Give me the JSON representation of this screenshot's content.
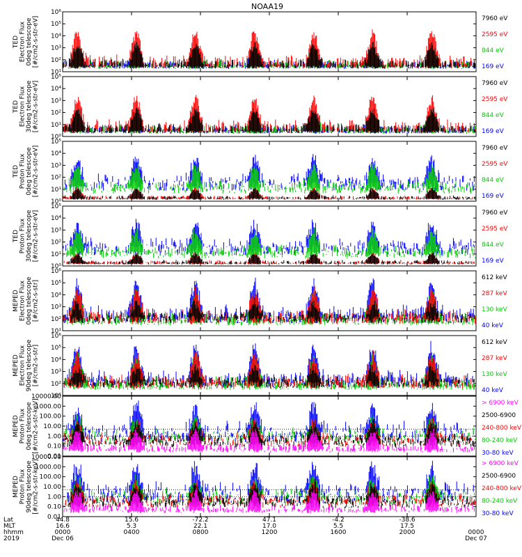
{
  "title": "NOAA19",
  "panels": [
    {
      "ylabel": [
        "TED",
        "Electron Flux",
        "0deg telescope",
        "[#/cm2-s-str-eV]"
      ],
      "yticks": [
        "10¹",
        "10²",
        "10³",
        "10⁴",
        "10⁵",
        "10⁶"
      ],
      "legend": [
        {
          "text": "7960 eV",
          "color": "#000000"
        },
        {
          "text": "2595 eV",
          "color": "#ff0000"
        },
        {
          "text": "844 eV",
          "color": "#00cc00"
        },
        {
          "text": "169 eV",
          "color": "#0000ff"
        }
      ]
    },
    {
      "ylabel": [
        "TED",
        "Electron Flux",
        "30deg telescope",
        "[#/cm2-s-str-eV]"
      ],
      "yticks": [
        "10⁰",
        "10¹",
        "10²",
        "10³",
        "10⁴",
        "10⁵"
      ],
      "legend": [
        {
          "text": "7960 eV",
          "color": "#000000"
        },
        {
          "text": "2595 eV",
          "color": "#ff0000"
        },
        {
          "text": "844 eV",
          "color": "#00cc00"
        },
        {
          "text": "169 eV",
          "color": "#0000ff"
        }
      ]
    },
    {
      "ylabel": [
        "TED",
        "Proton Flux",
        "0deg telescope",
        "[#/cm2-s-str-eV]"
      ],
      "yticks": [
        "10⁰",
        "10¹",
        "10²",
        "10³",
        "10⁴",
        "10⁵"
      ],
      "legend": [
        {
          "text": "7960 eV",
          "color": "#000000"
        },
        {
          "text": "2595 eV",
          "color": "#ff0000"
        },
        {
          "text": "844 eV",
          "color": "#00cc00"
        },
        {
          "text": "169 eV",
          "color": "#0000ff"
        }
      ]
    },
    {
      "ylabel": [
        "TED",
        "Proton Flux",
        "30deg telescope",
        "[#/cm2-s-str-eV]"
      ],
      "yticks": [
        "10⁰",
        "10¹",
        "10²",
        "10³",
        "10⁴",
        "10⁵"
      ],
      "legend": [
        {
          "text": "7960 eV",
          "color": "#000000"
        },
        {
          "text": "2595 eV",
          "color": "#ff0000"
        },
        {
          "text": "844 eV",
          "color": "#00cc00"
        },
        {
          "text": "169 eV",
          "color": "#0000ff"
        }
      ]
    },
    {
      "ylabel": [
        "MEPED",
        "Electron Flux",
        "0deg telescope",
        "[#/cm2-s-str]"
      ],
      "yticks": [
        "10¹",
        "10²",
        "10³",
        "10⁴",
        "10⁵",
        "10⁶"
      ],
      "legend": [
        {
          "text": "612 keV",
          "color": "#000000"
        },
        {
          "text": "287 keV",
          "color": "#ff0000"
        },
        {
          "text": "130 keV",
          "color": "#00cc00"
        },
        {
          "text": "40 keV",
          "color": "#0000ff"
        }
      ]
    },
    {
      "ylabel": [
        "MEPED",
        "Electron Flux",
        "90deg telescope",
        "[#/cm2-s-str]"
      ],
      "yticks": [
        "10¹",
        "10²",
        "10³",
        "10⁴",
        "10⁵",
        "10⁶"
      ],
      "legend": [
        {
          "text": "612 keV",
          "color": "#000000"
        },
        {
          "text": "287 keV",
          "color": "#ff0000"
        },
        {
          "text": "130 keV",
          "color": "#00cc00"
        },
        {
          "text": "40 keV",
          "color": "#0000ff"
        }
      ]
    },
    {
      "ylabel": [
        "MEPED",
        "Proton Flux",
        "0deg telescope",
        "[#/cm2-s-str-keV]"
      ],
      "yticks": [
        "0.01",
        "0.10",
        "1.00",
        "10.00",
        "100.00",
        "1000.00",
        "10000.00"
      ],
      "legend": [
        {
          "text": "> 6900 keV",
          "color": "#ff00ff"
        },
        {
          "text": "2500-6900",
          "color": "#000000"
        },
        {
          "text": "240-800 keV",
          "color": "#ff0000"
        },
        {
          "text": "80-240 keV",
          "color": "#00cc00"
        },
        {
          "text": "30-80 keV",
          "color": "#0000ff"
        }
      ]
    },
    {
      "ylabel": [
        "MEPED",
        "Proton Flux",
        "90deg telescope",
        "[#/cm2-s-str-keV]"
      ],
      "yticks": [
        "0.01",
        "0.10",
        "1.00",
        "10.00",
        "100.00",
        "1000.00",
        "10000.00"
      ],
      "legend": [
        {
          "text": "> 6900 keV",
          "color": "#ff00ff"
        },
        {
          "text": "2500-6900",
          "color": "#000000"
        },
        {
          "text": "240-800 keV",
          "color": "#ff0000"
        },
        {
          "text": "80-240 keV",
          "color": "#00cc00"
        },
        {
          "text": "30-80 keV",
          "color": "#0000ff"
        }
      ]
    }
  ],
  "xaxis": {
    "row_labels": [
      "Lat",
      "MLT",
      "hhmm",
      "2019"
    ],
    "columns": [
      {
        "lat": "44.8",
        "mlt": "16.6",
        "hhmm": "0000",
        "date": "Dec 06"
      },
      {
        "lat": "15.6",
        "mlt": "5.3",
        "hhmm": "0400",
        "date": ""
      },
      {
        "lat": "-72.2",
        "mlt": "22.1",
        "hhmm": "0800",
        "date": ""
      },
      {
        "lat": "47.1",
        "mlt": "17.0",
        "hhmm": "1200",
        "date": ""
      },
      {
        "lat": "-4.2",
        "mlt": "5.5",
        "hhmm": "1600",
        "date": ""
      },
      {
        "lat": "-38.6",
        "mlt": "17.5",
        "hhmm": "2000",
        "date": ""
      },
      {
        "lat": "",
        "mlt": "",
        "hhmm": "0000",
        "date": "Dec 07"
      }
    ]
  },
  "chart_data": {
    "type": "line",
    "title": "NOAA19",
    "x": [
      "0000",
      "0400",
      "0800",
      "1200",
      "1600",
      "2000",
      "0000"
    ],
    "x_dates": [
      "Dec 06",
      "Dec 07"
    ],
    "panel_count": 8,
    "grid": false,
    "legend_placement": "right",
    "note_values": "dense time series; values are represented procedurally per panel"
  }
}
